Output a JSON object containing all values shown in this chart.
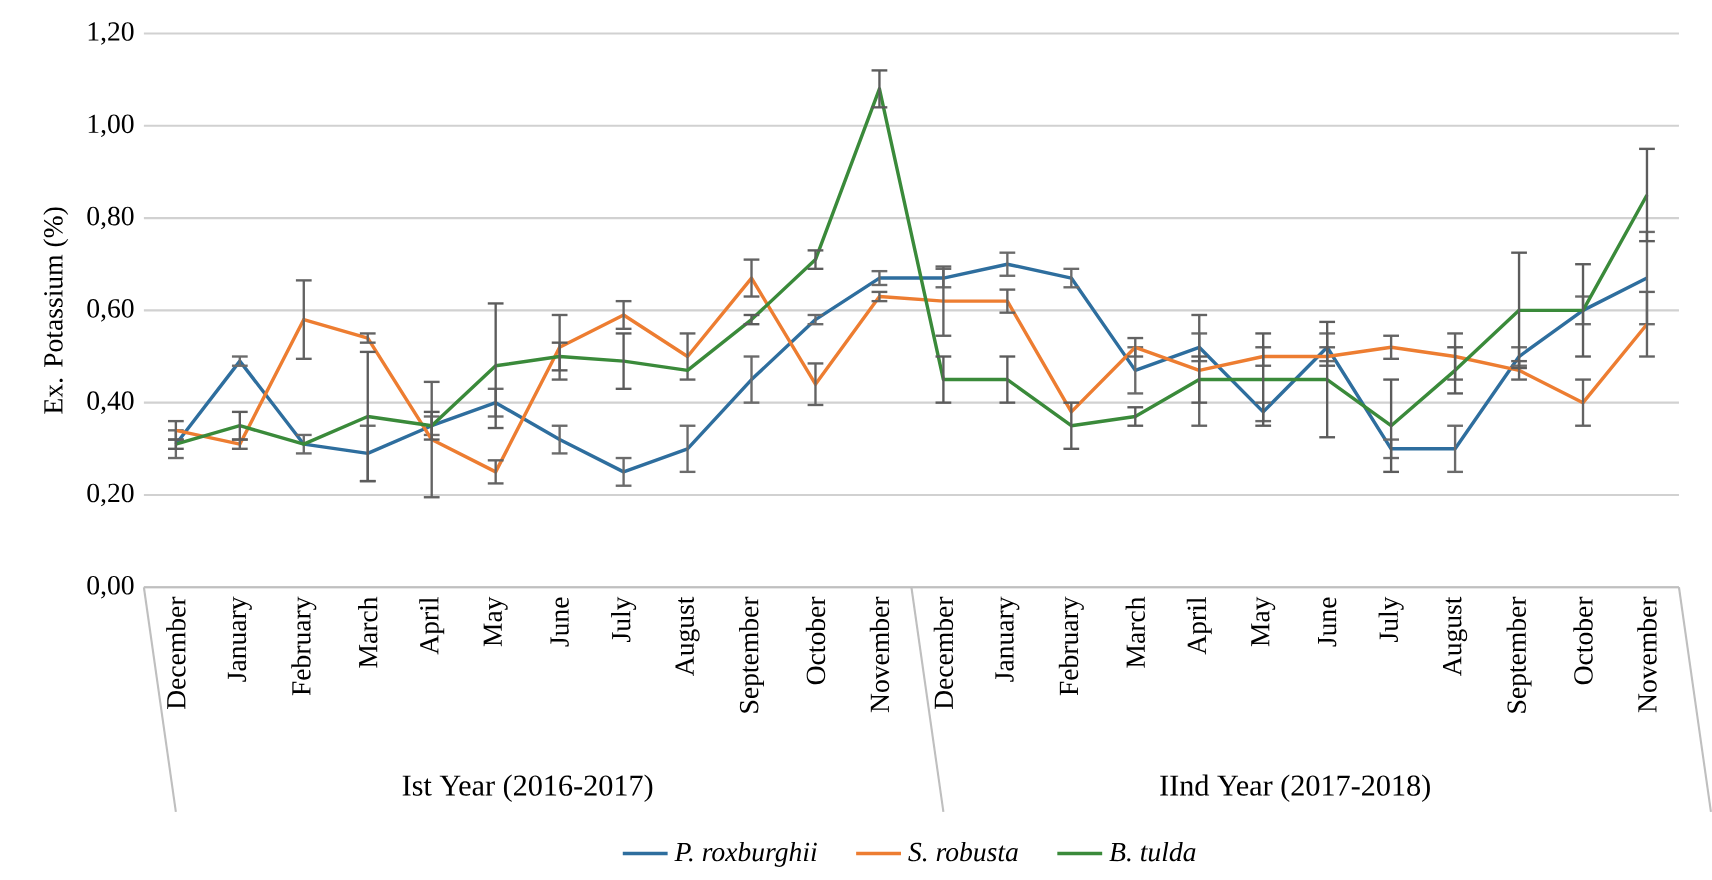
{
  "chart_data": {
    "type": "line",
    "ylabel": "Ex. Potassium (%)",
    "categories": [
      "December",
      "January",
      "February",
      "March",
      "April",
      "May",
      "June",
      "July",
      "August",
      "September",
      "October",
      "November",
      "December",
      "January",
      "February",
      "March",
      "April",
      "May",
      "June",
      "July",
      "August",
      "September",
      "October",
      "November"
    ],
    "annotations": [
      "Ist Year (2016-2017)",
      "IInd Year (2017-2018)"
    ],
    "series": [
      {
        "name": "P. roxburghii",
        "color": "#2e6e9e",
        "values": [
          0.31,
          0.49,
          0.31,
          0.29,
          0.35,
          0.4,
          0.32,
          0.25,
          0.3,
          0.45,
          0.58,
          0.67,
          0.67,
          0.7,
          0.67,
          0.47,
          0.52,
          0.38,
          0.52,
          0.3,
          0.3,
          0.5,
          0.6,
          0.67
        ],
        "errors": [
          0.03,
          0.01,
          0.02,
          0.06,
          0.02,
          0.03,
          0.03,
          0.03,
          0.05,
          0.05,
          0.01,
          0.015,
          0.02,
          0.025,
          0.02,
          0.05,
          0.03,
          0.02,
          0.03,
          0.02,
          0.05,
          0.02,
          0.03,
          0.1
        ]
      },
      {
        "name": "S. robusta",
        "color": "#ed7d31",
        "values": [
          0.34,
          0.31,
          0.58,
          0.54,
          0.32,
          0.25,
          0.52,
          0.59,
          0.5,
          0.67,
          0.44,
          0.63,
          0.62,
          0.62,
          0.38,
          0.52,
          0.47,
          0.5,
          0.5,
          0.52,
          0.5,
          0.47,
          0.4,
          0.57
        ],
        "errors": [
          0.02,
          0.01,
          0.085,
          0.01,
          0.125,
          0.025,
          0.07,
          0.03,
          0.05,
          0.04,
          0.045,
          0.01,
          0.075,
          0.025,
          null,
          0.02,
          0.12,
          0.02,
          0.02,
          0.025,
          0.05,
          0.02,
          0.05,
          0.07
        ]
      },
      {
        "name": "B. tulda",
        "color": "#3a8a3a",
        "values": [
          0.31,
          0.35,
          0.31,
          0.37,
          0.35,
          0.48,
          0.5,
          0.49,
          0.47,
          0.58,
          0.71,
          1.08,
          0.45,
          0.45,
          0.35,
          0.37,
          0.45,
          0.45,
          0.45,
          0.35,
          0.47,
          0.6,
          0.6,
          0.85
        ],
        "errors": [
          0.01,
          0.03,
          null,
          0.14,
          0.03,
          0.135,
          0.03,
          0.06,
          null,
          0.01,
          0.02,
          0.04,
          0.05,
          0.05,
          0.05,
          0.02,
          0.05,
          0.1,
          0.125,
          0.1,
          0.05,
          0.125,
          0.1,
          0.1
        ]
      }
    ],
    "ylim": [
      0,
      1.2
    ],
    "yticks": [
      {
        "value": 0,
        "label": "0,00"
      },
      {
        "value": 0.2,
        "label": "0,20"
      },
      {
        "value": 0.4,
        "label": "0,40"
      },
      {
        "value": 0.6,
        "label": "0,60"
      },
      {
        "value": 0.8,
        "label": "0,80"
      },
      {
        "value": 1.0,
        "label": "1,00"
      },
      {
        "value": 1.2,
        "label": "1,20"
      }
    ],
    "grid": "y",
    "legend": "bottom",
    "line_style": "solid",
    "marker": "none"
  }
}
